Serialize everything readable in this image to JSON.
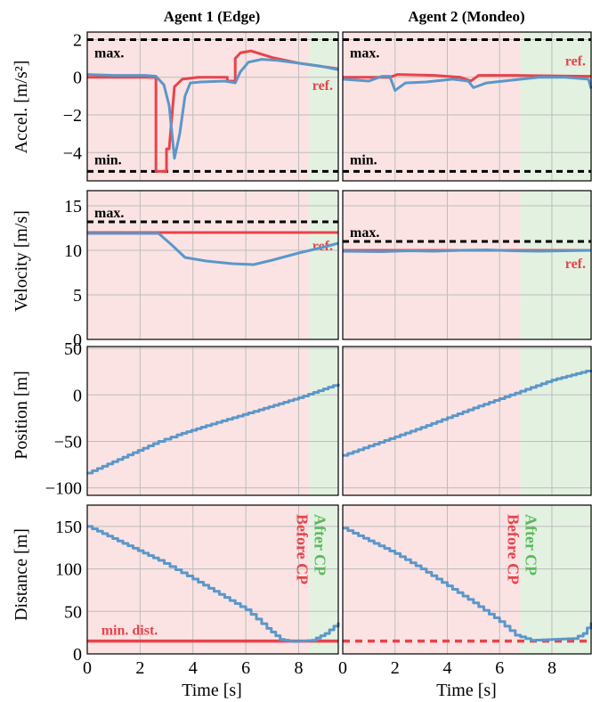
{
  "chart_data": {
    "type": "line",
    "columns": [
      "Agent 1 (Edge)",
      "Agent 2 (Mondeo)"
    ],
    "xlabel": "Time [s]",
    "xlim": [
      0,
      9.5
    ],
    "xticks": [
      0,
      2,
      4,
      6,
      8
    ],
    "colors": {
      "reference": "#e8434b",
      "measured": "#5b97c9",
      "limit": "#000000",
      "before_cp": "#fbe3e3",
      "after_cp": "#e3f1e1",
      "before_cp_text": "#e8434b",
      "after_cp_text": "#5cb85c"
    },
    "cp_time": [
      8.4,
      6.8
    ],
    "rows": [
      {
        "key": "accel",
        "ylabel": "Accel. [m/s²]",
        "ylim": [
          -5.5,
          2.4
        ],
        "yticks": [
          2,
          0,
          -2,
          -4
        ],
        "limits": {
          "max": 2,
          "min": -5
        },
        "limit_labels": {
          "max": "max.",
          "min": "min."
        },
        "ref_label": "ref.",
        "agents": [
          {
            "ref": [
              [
                0,
                0
              ],
              [
                2.6,
                0
              ],
              [
                2.6,
                -5
              ],
              [
                3.0,
                -5
              ],
              [
                3.0,
                -3.8
              ],
              [
                3.1,
                -3.8
              ],
              [
                3.3,
                -0.5
              ],
              [
                3.6,
                -0.1
              ],
              [
                4.2,
                0
              ],
              [
                5.3,
                0
              ],
              [
                5.3,
                -0.2
              ],
              [
                5.6,
                -0.2
              ],
              [
                5.6,
                1
              ],
              [
                5.8,
                1.3
              ],
              [
                6.2,
                1.4
              ],
              [
                7.0,
                1.05
              ],
              [
                8.0,
                0.75
              ],
              [
                9.5,
                0.45
              ]
            ],
            "meas": [
              [
                0,
                0.15
              ],
              [
                1.0,
                0.1
              ],
              [
                2.2,
                0.1
              ],
              [
                2.6,
                0.05
              ],
              [
                2.9,
                -0.4
              ],
              [
                3.1,
                -1.5
              ],
              [
                3.3,
                -4.3
              ],
              [
                3.5,
                -3.0
              ],
              [
                3.7,
                -1.0
              ],
              [
                3.9,
                -0.3
              ],
              [
                4.3,
                -0.25
              ],
              [
                5.2,
                -0.2
              ],
              [
                5.6,
                -0.3
              ],
              [
                5.8,
                0.3
              ],
              [
                6.1,
                0.8
              ],
              [
                6.6,
                0.95
              ],
              [
                7.2,
                0.9
              ],
              [
                8.0,
                0.75
              ],
              [
                8.8,
                0.6
              ],
              [
                9.5,
                0.4
              ]
            ]
          },
          {
            "ref": [
              [
                0,
                0
              ],
              [
                1.8,
                0
              ],
              [
                2.1,
                0.15
              ],
              [
                3.5,
                0.1
              ],
              [
                4.5,
                0.0
              ],
              [
                4.9,
                -0.2
              ],
              [
                5.2,
                0.1
              ],
              [
                6.5,
                0.1
              ],
              [
                9.5,
                0.05
              ]
            ],
            "meas": [
              [
                0,
                -0.1
              ],
              [
                1.0,
                -0.2
              ],
              [
                1.5,
                0.05
              ],
              [
                1.8,
                0.05
              ],
              [
                2.0,
                -0.7
              ],
              [
                2.4,
                -0.3
              ],
              [
                3.2,
                -0.25
              ],
              [
                4.2,
                -0.1
              ],
              [
                4.8,
                -0.2
              ],
              [
                5.0,
                -0.55
              ],
              [
                5.5,
                -0.3
              ],
              [
                6.5,
                -0.15
              ],
              [
                7.5,
                0.0
              ],
              [
                8.5,
                0.0
              ],
              [
                9.4,
                -0.1
              ],
              [
                9.5,
                -0.6
              ]
            ]
          }
        ]
      },
      {
        "key": "velocity",
        "ylabel": "Velocity [m/s]",
        "ylim": [
          0,
          16.7
        ],
        "yticks": [
          15,
          10,
          5,
          0
        ],
        "limits_per_agent": [
          13.2,
          11.0
        ],
        "limit_label": "max.",
        "ref_label": "ref.",
        "agents": [
          {
            "ref": [
              [
                0,
                12
              ],
              [
                9.5,
                12
              ]
            ],
            "meas": [
              [
                0,
                11.9
              ],
              [
                2.7,
                11.9
              ],
              [
                3.2,
                10.6
              ],
              [
                3.7,
                9.2
              ],
              [
                4.5,
                8.8
              ],
              [
                5.5,
                8.5
              ],
              [
                6.3,
                8.4
              ],
              [
                7.0,
                8.9
              ],
              [
                8.0,
                9.7
              ],
              [
                9.0,
                10.4
              ],
              [
                9.5,
                10.8
              ]
            ]
          },
          {
            "ref": [
              [
                0,
                10
              ],
              [
                9.5,
                10
              ]
            ],
            "meas": [
              [
                0,
                9.9
              ],
              [
                1.5,
                9.85
              ],
              [
                2.5,
                9.95
              ],
              [
                3.5,
                9.9
              ],
              [
                4.5,
                10.0
              ],
              [
                5.5,
                10.05
              ],
              [
                6.5,
                9.95
              ],
              [
                7.5,
                9.9
              ],
              [
                8.5,
                9.95
              ],
              [
                9.5,
                10.0
              ]
            ]
          }
        ]
      },
      {
        "key": "position",
        "ylabel": "Position [m]",
        "ylim": [
          -108,
          52
        ],
        "yticks": [
          50,
          0,
          -50,
          -100
        ],
        "agents": [
          {
            "meas": [
              [
                0,
                -84
              ],
              [
                2.7,
                -50
              ],
              [
                3.4,
                -43
              ],
              [
                4.5,
                -33
              ],
              [
                6.5,
                -16
              ],
              [
                8.0,
                -3
              ],
              [
                9.5,
                12
              ]
            ]
          },
          {
            "meas": [
              [
                0,
                -65
              ],
              [
                2.0,
                -45
              ],
              [
                3.0,
                -35
              ],
              [
                5.0,
                -14
              ],
              [
                6.8,
                4
              ],
              [
                8.0,
                16
              ],
              [
                9.5,
                27
              ]
            ]
          }
        ]
      },
      {
        "key": "distance",
        "ylabel": "Distance [m]",
        "ylim": [
          0,
          175
        ],
        "yticks": [
          150,
          100,
          50,
          0
        ],
        "min_dist": 15,
        "min_label": "min. dist.",
        "before_label": "Before CP",
        "after_label": "After CP",
        "agents": [
          {
            "meas": [
              [
                0,
                150
              ],
              [
                2.7,
                110
              ],
              [
                4.0,
                88
              ],
              [
                5.0,
                70
              ],
              [
                6.0,
                52
              ],
              [
                6.8,
                30
              ],
              [
                7.3,
                17
              ],
              [
                7.8,
                14.5
              ],
              [
                8.5,
                16
              ],
              [
                9.0,
                24
              ],
              [
                9.5,
                37
              ]
            ]
          },
          {
            "meas": [
              [
                0,
                148
              ],
              [
                2.0,
                118
              ],
              [
                3.0,
                100
              ],
              [
                4.0,
                80
              ],
              [
                5.0,
                60
              ],
              [
                6.0,
                38
              ],
              [
                6.6,
                22
              ],
              [
                7.2,
                16
              ],
              [
                8.0,
                17
              ],
              [
                8.8,
                18
              ],
              [
                9.2,
                24
              ],
              [
                9.5,
                37
              ]
            ]
          }
        ]
      }
    ]
  }
}
